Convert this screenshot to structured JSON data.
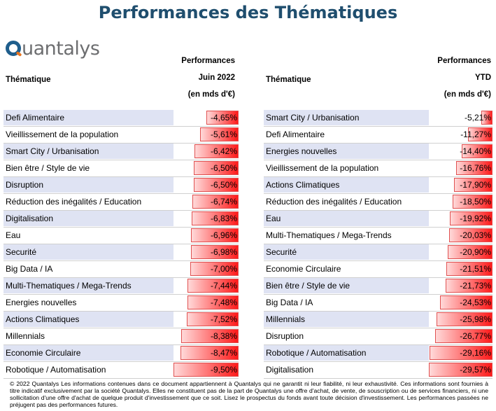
{
  "title": "Performances des Thématiques",
  "logo": {
    "text": "uantalys",
    "icon": "quantalys-q-icon",
    "brand_colors": {
      "blue": "#1f5e8c",
      "orange": "#e8731e",
      "gray": "#6d6e70"
    }
  },
  "left_header": {
    "col_label": "Thématique",
    "perf_line1": "Performances",
    "perf_line2": "Juin 2022",
    "perf_line3": "(en mds d'€)"
  },
  "right_header": {
    "col_label": "Thématique",
    "perf_line1": "Performances",
    "perf_line2": "YTD",
    "perf_line3": "(en mds d'€)"
  },
  "chart_data": [
    {
      "type": "table",
      "columns": [
        "Thématique",
        "Performances Juin 2022 (en mds d'€)"
      ],
      "rows": [
        {
          "name": "Defi Alimentaire",
          "label": "-4,65%",
          "value": -4.65
        },
        {
          "name": "Vieillissement de la population",
          "label": "-5,61%",
          "value": -5.61
        },
        {
          "name": "Smart City / Urbanisation",
          "label": "-6,42%",
          "value": -6.42
        },
        {
          "name": "Bien être / Style de vie",
          "label": "-6,50%",
          "value": -6.5
        },
        {
          "name": "Disruption",
          "label": "-6,50%",
          "value": -6.5
        },
        {
          "name": "Réduction des inégalités / Education",
          "label": "-6,74%",
          "value": -6.74
        },
        {
          "name": "Digitalisation",
          "label": "-6,83%",
          "value": -6.83
        },
        {
          "name": "Eau",
          "label": "-6,96%",
          "value": -6.96
        },
        {
          "name": "Securité",
          "label": "-6,98%",
          "value": -6.98
        },
        {
          "name": "Big Data / IA",
          "label": "-7,00%",
          "value": -7.0
        },
        {
          "name": "Multi-Thematiques / Mega-Trends",
          "label": "-7,44%",
          "value": -7.44
        },
        {
          "name": "Energies nouvelles",
          "label": "-7,48%",
          "value": -7.48
        },
        {
          "name": "Actions Climatiques",
          "label": "-7,52%",
          "value": -7.52
        },
        {
          "name": "Millennials",
          "label": "-8,38%",
          "value": -8.38
        },
        {
          "name": "Economie Circulaire",
          "label": "-8,47%",
          "value": -8.47
        },
        {
          "name": "Robotique / Automatisation",
          "label": "-9,50%",
          "value": -9.5
        }
      ],
      "bar_scale_max": 9.5
    },
    {
      "type": "table",
      "columns": [
        "Thématique",
        "Performances YTD (en mds d'€)"
      ],
      "rows": [
        {
          "name": "Smart City / Urbanisation",
          "label": "-5,21%",
          "value": -5.21
        },
        {
          "name": "Defi Alimentaire",
          "label": "-11,27%",
          "value": -11.27
        },
        {
          "name": "Energies nouvelles",
          "label": "-14,40%",
          "value": -14.4
        },
        {
          "name": "Vieillissement de la population",
          "label": "-16,76%",
          "value": -16.76
        },
        {
          "name": "Actions Climatiques",
          "label": "-17,90%",
          "value": -17.9
        },
        {
          "name": "Réduction des inégalités / Education",
          "label": "-18,50%",
          "value": -18.5
        },
        {
          "name": "Eau",
          "label": "-19,92%",
          "value": -19.92
        },
        {
          "name": "Multi-Thematiques / Mega-Trends",
          "label": "-20,03%",
          "value": -20.03
        },
        {
          "name": "Securité",
          "label": "-20,90%",
          "value": -20.9
        },
        {
          "name": "Economie Circulaire",
          "label": "-21,51%",
          "value": -21.51
        },
        {
          "name": "Bien être / Style de vie",
          "label": "-21,73%",
          "value": -21.73
        },
        {
          "name": "Big Data / IA",
          "label": "-24,53%",
          "value": -24.53
        },
        {
          "name": "Millennials",
          "label": "-25,98%",
          "value": -25.98
        },
        {
          "name": "Disruption",
          "label": "-26,77%",
          "value": -26.77
        },
        {
          "name": "Robotique / Automatisation",
          "label": "-29,16%",
          "value": -29.16
        },
        {
          "name": "Digitalisation",
          "label": "-29,57%",
          "value": -29.57
        }
      ],
      "bar_scale_max": 29.57
    }
  ],
  "colors": {
    "title": "#1f4e6e",
    "row_shade": "#dfe3f3",
    "bar_light": "#ffd9d9",
    "bar_dark": "#ff1a1a"
  },
  "footer": "© 2022 Quantalys Les informations contenues dans ce document appartiennent à Quantalys qui ne garantit ni leur fiabilité, ni leur exhaustivité. Ces informations sont fournies à titre indicatif exclusivement par la société Quantalys. Elles ne constituent pas de la part de Quantalys une offre d'achat, de vente, de souscription ou de services financiers, ni une sollicitation d'une offre d'achat de quelque produit d'investissement que ce soit. Lisez le prospectus du fonds avant toute décision d'investissement. Les performances passées ne préjugent pas des performances futures."
}
